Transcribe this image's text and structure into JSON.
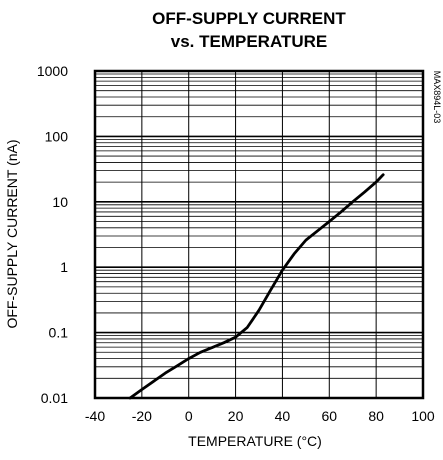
{
  "chart_data": {
    "type": "line",
    "title_line1": "OFF-SUPPLY CURRENT",
    "title_line2": "vs. TEMPERATURE",
    "xlabel": "TEMPERATURE (°C)",
    "ylabel": "OFF-SUPPLY CURRENT (nA)",
    "part_code": "MAX894L-03",
    "xlim": [
      -40,
      100
    ],
    "ylim": [
      0.01,
      1000
    ],
    "yscale": "log",
    "grid": true,
    "x_ticks": [
      "-40",
      "-20",
      "0",
      "20",
      "40",
      "60",
      "80",
      "100"
    ],
    "y_ticks": [
      "0.01",
      "0.1",
      "1",
      "10",
      "100",
      "1000"
    ],
    "series": [
      {
        "x": [
          -25,
          -20,
          -15,
          -10,
          -5,
          0,
          5,
          10,
          15,
          20,
          25,
          30,
          35,
          40,
          45,
          50,
          55,
          60,
          65,
          70,
          75,
          80,
          83
        ],
        "y": [
          0.01,
          0.0135,
          0.018,
          0.024,
          0.031,
          0.04,
          0.05,
          0.059,
          0.07,
          0.085,
          0.12,
          0.22,
          0.45,
          0.9,
          1.6,
          2.6,
          3.6,
          5.0,
          7.0,
          10,
          14,
          20,
          26
        ]
      }
    ]
  }
}
